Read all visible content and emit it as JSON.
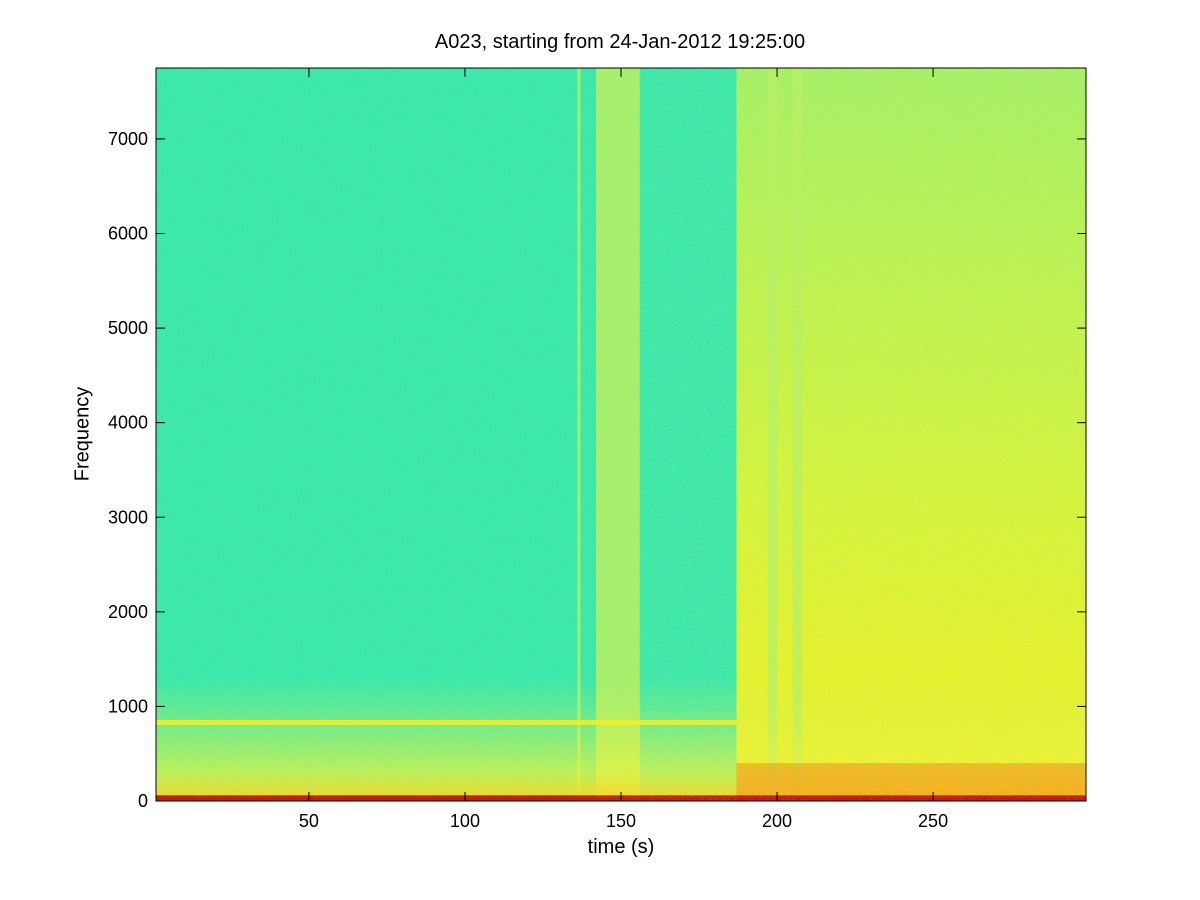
{
  "chart_data": {
    "type": "heatmap",
    "title": "A023, starting from 24-Jan-2012 19:25:00",
    "xlabel": "time (s)",
    "ylabel": "Frequency",
    "xlim": [
      1,
      299
    ],
    "ylim": [
      0,
      7750
    ],
    "xticks": [
      50,
      100,
      150,
      200,
      250
    ],
    "yticks": [
      0,
      1000,
      2000,
      3000,
      4000,
      5000,
      6000,
      7000
    ],
    "colormap": "jet",
    "colors": {
      "background_quiet": "#3ee8a8",
      "background_loud": "#b6f45a",
      "peak": "#b80000"
    },
    "features": [
      {
        "kind": "horizontal_tone",
        "frequency": 830,
        "t_start": 1,
        "t_end": 187
      },
      {
        "kind": "vertical_band",
        "t_start": 136,
        "t_end": 137
      },
      {
        "kind": "vertical_band",
        "t_start": 142,
        "t_end": 156
      },
      {
        "kind": "vertical_band",
        "t_start": 187,
        "t_end": 299
      },
      {
        "kind": "vertical_band",
        "t_start": 197,
        "t_end": 200
      },
      {
        "kind": "vertical_band",
        "t_start": 205,
        "t_end": 208
      },
      {
        "kind": "low_frequency_energy",
        "f_max": 400,
        "t_start": 187,
        "t_end": 299
      },
      {
        "kind": "low_frequency_energy",
        "f_max": 60,
        "t_start": 1,
        "t_end": 299
      }
    ]
  }
}
